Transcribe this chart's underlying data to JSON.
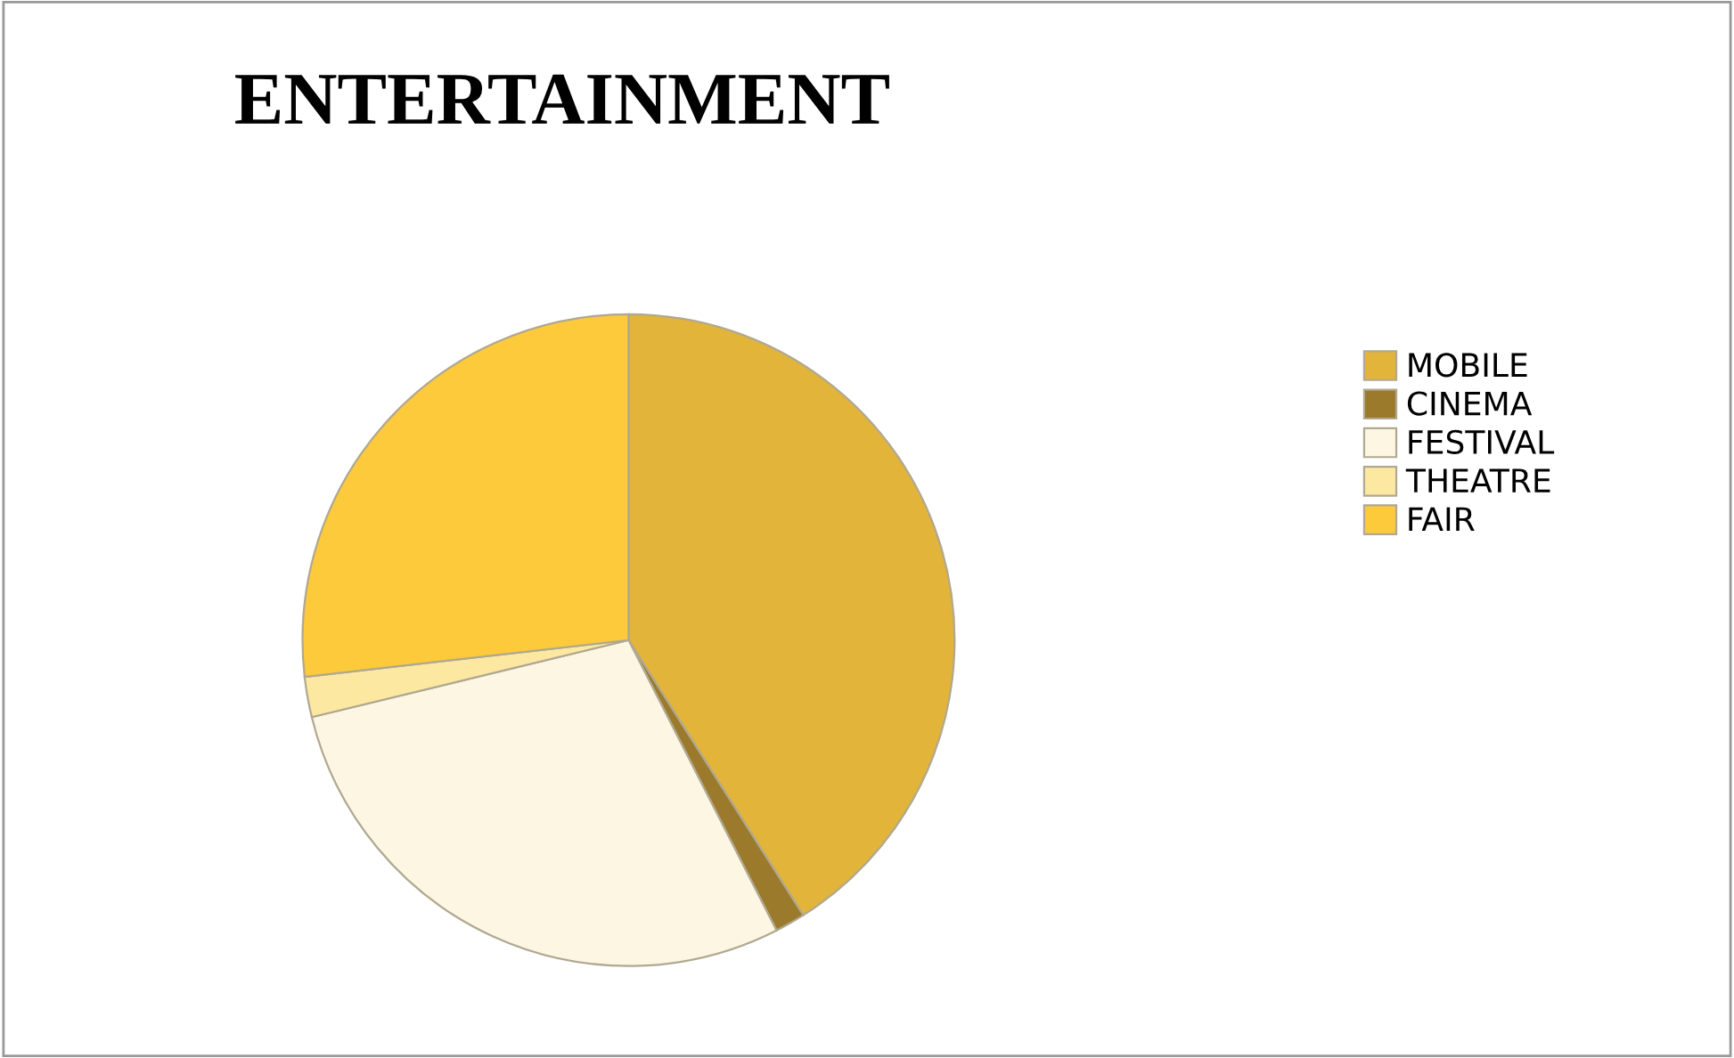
{
  "chart_data": {
    "type": "pie",
    "title": "ENTERTAINMENT",
    "categories": [
      "MOBILE",
      "CINEMA",
      "FESTIVAL",
      "THEATRE",
      "FAIR"
    ],
    "values": [
      41,
      1.5,
      28.7,
      2,
      26.8
    ],
    "colors": [
      "#e2b43a",
      "#9c7a2c",
      "#fcf6e3",
      "#fde8a2",
      "#fcca3a"
    ],
    "legend": "right"
  }
}
